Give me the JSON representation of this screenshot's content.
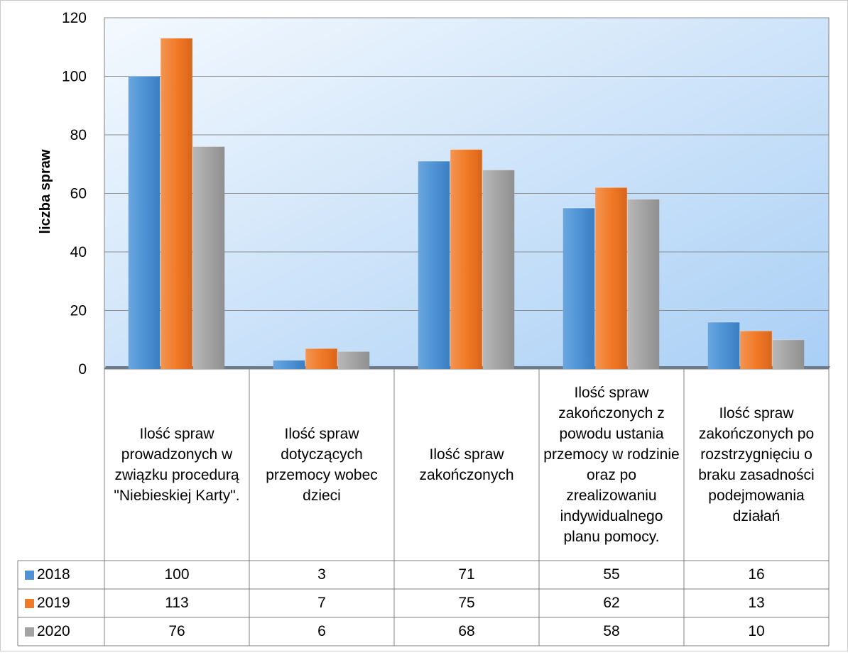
{
  "chart_data": {
    "type": "bar",
    "ylabel": "liczba spraw",
    "ylim": [
      0,
      120
    ],
    "yticks": [
      0,
      20,
      40,
      60,
      80,
      100,
      120
    ],
    "grid": true,
    "legend": "table-left",
    "categories": [
      "Ilość spraw prowadzonych w związku procedurą \"Niebieskiej Karty\".",
      "Ilość spraw dotyczących przemocy wobec dzieci",
      "Ilość spraw zakończonych",
      "Ilość spraw zakończonych z powodu ustania przemocy w rodzinie oraz po zrealizowaniu indywidualnego planu pomocy.",
      "Ilość spraw zakończonych po rozstrzygnięciu o braku zasadności podejmowania działań"
    ],
    "series": [
      {
        "name": "2018",
        "color": "#4e93d5",
        "values": [
          100,
          3,
          71,
          55,
          16
        ]
      },
      {
        "name": "2019",
        "color": "#f07a26",
        "values": [
          113,
          7,
          75,
          62,
          13
        ]
      },
      {
        "name": "2020",
        "color": "#a3a3a3",
        "values": [
          76,
          6,
          68,
          58,
          10
        ]
      }
    ]
  }
}
